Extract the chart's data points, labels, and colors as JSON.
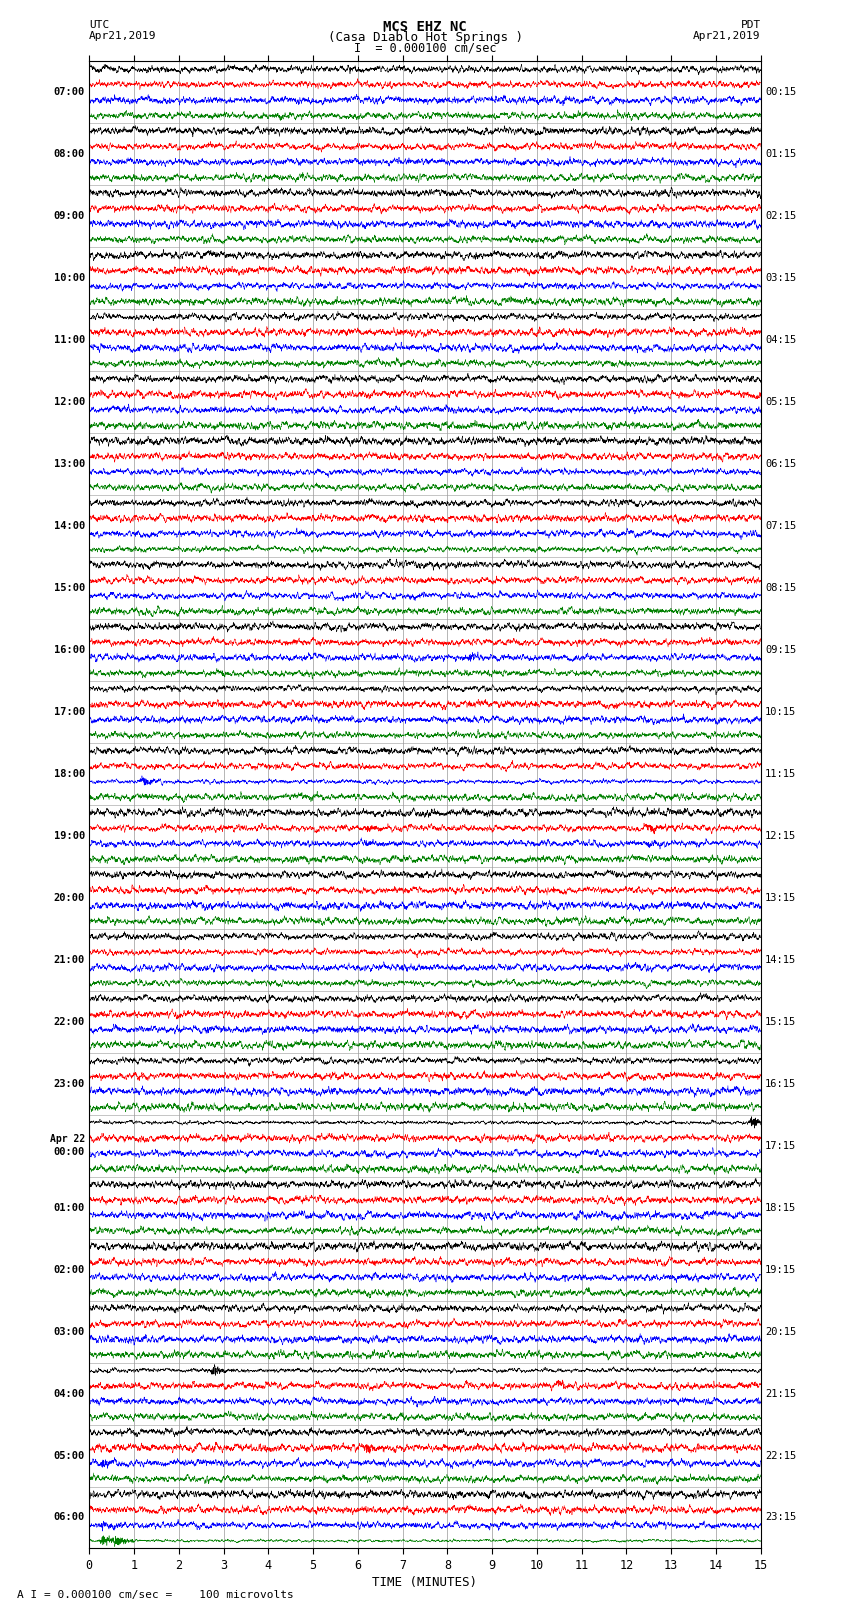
{
  "title_line1": "MCS EHZ NC",
  "title_line2": "(Casa Diablo Hot Springs )",
  "scale_label": "I  = 0.000100 cm/sec",
  "bottom_label": "A I = 0.000100 cm/sec =    100 microvolts",
  "xlabel": "TIME (MINUTES)",
  "utc_label_line1": "UTC",
  "utc_label_line2": "Apr21,2019",
  "pdt_label_line1": "PDT",
  "pdt_label_line2": "Apr21,2019",
  "left_times": [
    "07:00",
    "08:00",
    "09:00",
    "10:00",
    "11:00",
    "12:00",
    "13:00",
    "14:00",
    "15:00",
    "16:00",
    "17:00",
    "18:00",
    "19:00",
    "20:00",
    "21:00",
    "22:00",
    "23:00",
    "Apr 22\n00:00",
    "01:00",
    "02:00",
    "03:00",
    "04:00",
    "05:00",
    "06:00"
  ],
  "right_times": [
    "00:15",
    "01:15",
    "02:15",
    "03:15",
    "04:15",
    "05:15",
    "06:15",
    "07:15",
    "08:15",
    "09:15",
    "10:15",
    "11:15",
    "12:15",
    "13:15",
    "14:15",
    "15:15",
    "16:15",
    "17:15",
    "18:15",
    "19:15",
    "20:15",
    "21:15",
    "22:15",
    "23:15"
  ],
  "n_rows": 24,
  "traces_per_row": 4,
  "colors": [
    "black",
    "red",
    "blue",
    "green"
  ],
  "fig_width": 8.5,
  "fig_height": 16.13,
  "bg_color": "white",
  "grid_color": "#999999",
  "x_ticks": [
    0,
    1,
    2,
    3,
    4,
    5,
    6,
    7,
    8,
    9,
    10,
    11,
    12,
    13,
    14,
    15
  ],
  "minutes": 15,
  "seed": 42,
  "noise_base": 0.025,
  "special_events": [
    [
      9,
      2,
      8.5,
      0.8
    ],
    [
      10,
      1,
      8.5,
      0.5
    ],
    [
      10,
      2,
      8.5,
      0.6
    ],
    [
      11,
      2,
      1.2,
      2.5
    ],
    [
      11,
      0,
      6.5,
      0.4
    ],
    [
      11,
      1,
      1.5,
      0.3
    ],
    [
      12,
      1,
      6.2,
      0.8
    ],
    [
      12,
      2,
      6.2,
      0.7
    ],
    [
      12,
      1,
      12.5,
      1.2
    ],
    [
      12,
      2,
      12.5,
      0.9
    ],
    [
      17,
      0,
      14.8,
      2.5
    ],
    [
      17,
      0,
      14.9,
      2.0
    ],
    [
      21,
      0,
      2.8,
      2.5
    ],
    [
      21,
      1,
      10.5,
      0.8
    ],
    [
      21,
      3,
      10.2,
      0.5
    ],
    [
      22,
      2,
      0.3,
      1.5
    ],
    [
      22,
      1,
      2.8,
      0.4
    ],
    [
      22,
      1,
      6.2,
      1.2
    ],
    [
      23,
      3,
      0.3,
      4.0
    ],
    [
      23,
      3,
      0.6,
      5.0
    ],
    [
      23,
      2,
      0.3,
      1.0
    ],
    [
      23,
      0,
      2.8,
      0.4
    ]
  ]
}
